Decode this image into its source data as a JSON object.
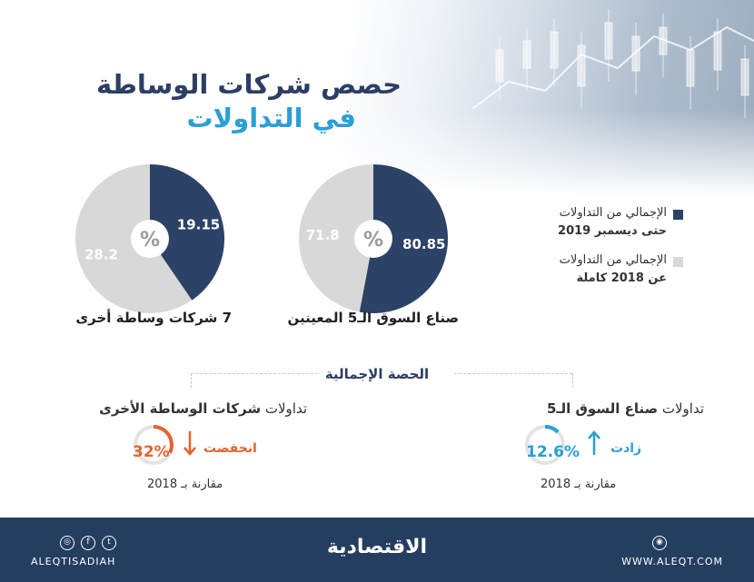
{
  "header": {
    "title_line1": "حصص شركات الوساطة",
    "title_line2": "في التداولات"
  },
  "legend": {
    "items": [
      {
        "line1": "الإجمالي من التداولات",
        "line2": "حتى ديسمبر 2019",
        "color": "#2c4266"
      },
      {
        "line1": "الإجمالي من التداولات",
        "line2": "عن 2018 كاملة",
        "color": "#d8d8d8"
      }
    ]
  },
  "chart_data": [
    {
      "type": "pie",
      "title": "صناع السوق الـ5 المعينين",
      "center_label": "%",
      "slices": [
        {
          "label": "الإجمالي من التداولات حتى ديسمبر 2019",
          "value": 80.85,
          "color": "#2c4266"
        },
        {
          "label": "الإجمالي من التداولات عن 2018 كاملة",
          "value": 71.8,
          "color": "#d8d8d8"
        }
      ]
    },
    {
      "type": "pie",
      "title": "7 شركات وساطة أخرى",
      "center_label": "%",
      "slices": [
        {
          "label": "الإجمالي من التداولات حتى ديسمبر 2019",
          "value": 19.15,
          "color": "#2c4266"
        },
        {
          "label": "الإجمالي من التداولات عن 2018 كاملة",
          "value": 28.2,
          "color": "#d8d8d8"
        }
      ]
    }
  ],
  "overall": {
    "title": "الحصة الإجمالية",
    "market_makers": {
      "head_prefix": "تداولات ",
      "head_bold": "صناع السوق الـ5",
      "value": "12.6%",
      "value_fraction": 0.126,
      "direction_word": "زادت",
      "compare": "مقارنة بـ 2018",
      "color": "#2a9fd6"
    },
    "other_brokers": {
      "head_prefix": "تداولات ",
      "head_bold": "شركات الوساطة الأخرى",
      "value": "32%",
      "value_fraction": 0.32,
      "direction_word": "انخفضت",
      "compare": "مقارنة بـ 2018",
      "color": "#e2632d"
    }
  },
  "footer": {
    "brand": "الاقتصادية",
    "handle": "ALEQTISADIAH",
    "site": "WWW.ALEQT.COM",
    "icons": [
      "instagram-icon",
      "facebook-icon",
      "twitter-icon",
      "globe-icon"
    ]
  }
}
